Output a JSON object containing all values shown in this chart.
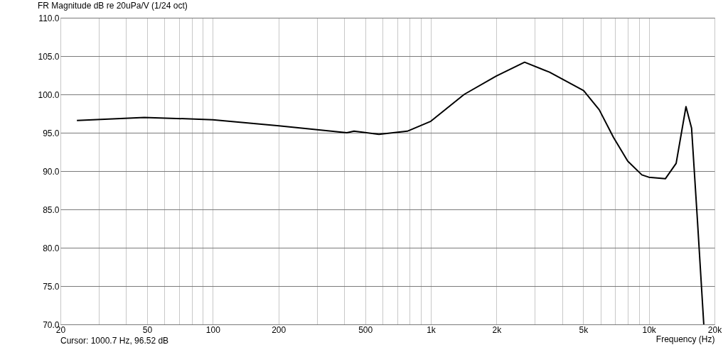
{
  "chart_data": {
    "type": "line",
    "title": "FR Magnitude dB re 20uPa/V (1/24 oct)",
    "xlabel": "Frequency (Hz)",
    "annotations": [
      "Cursor: 1000.7 Hz, 96.52 dB"
    ],
    "log": "x",
    "grid": true,
    "line_style": "solid",
    "marker": "none",
    "x": [
      23.8,
      48.5,
      100,
      201,
      412,
      444,
      578,
      780,
      1000,
      1422,
      1996,
      2692,
      3500,
      5020,
      5920,
      6880,
      8000,
      9290,
      10000,
      11900,
      13340,
      14800,
      15700,
      16700,
      17860
    ],
    "series": [
      {
        "color": "#000000",
        "values": [
          96.6,
          97.0,
          96.7,
          95.9,
          95.0,
          95.2,
          94.8,
          95.2,
          96.5,
          100.0,
          102.4,
          104.2,
          102.9,
          100.5,
          98.0,
          94.4,
          91.3,
          89.5,
          89.2,
          89.0,
          91.0,
          98.4,
          95.6,
          83.6,
          70.0
        ]
      }
    ],
    "xlim": [
      20,
      20000
    ],
    "xticks": [
      20,
      {
        "value": 30,
        "label": null
      },
      {
        "value": 40,
        "label": null
      },
      50,
      {
        "value": 60,
        "label": null
      },
      {
        "value": 70,
        "label": null
      },
      {
        "value": 80,
        "label": null
      },
      {
        "value": 90,
        "label": null
      },
      100,
      200,
      {
        "value": 300,
        "label": null
      },
      {
        "value": 400,
        "label": null
      },
      500,
      {
        "value": 600,
        "label": null
      },
      {
        "value": 700,
        "label": null
      },
      {
        "value": 800,
        "label": null
      },
      {
        "value": 900,
        "label": null
      },
      {
        "value": 1000,
        "label": "1k"
      },
      {
        "value": 2000,
        "label": "2k"
      },
      {
        "value": 3000,
        "label": null
      },
      {
        "value": 4000,
        "label": null
      },
      {
        "value": 5000,
        "label": "5k"
      },
      {
        "value": 6000,
        "label": null
      },
      {
        "value": 7000,
        "label": null
      },
      {
        "value": 8000,
        "label": null
      },
      {
        "value": 9000,
        "label": null
      },
      {
        "value": 10000,
        "label": "10k"
      },
      {
        "value": 20000,
        "label": "20k"
      }
    ],
    "ylim": [
      70,
      110
    ],
    "yticks": [
      {
        "value": 70,
        "label": "70.0"
      },
      {
        "value": 75,
        "label": "75.0"
      },
      {
        "value": 80,
        "label": "80.0"
      },
      {
        "value": 85,
        "label": "85.0"
      },
      {
        "value": 90,
        "label": "90.0"
      },
      {
        "value": 95,
        "label": "95.0"
      },
      {
        "value": 100,
        "label": "100.0"
      },
      {
        "value": 105,
        "label": "105.0"
      },
      {
        "value": 110,
        "label": "110.0"
      }
    ]
  }
}
